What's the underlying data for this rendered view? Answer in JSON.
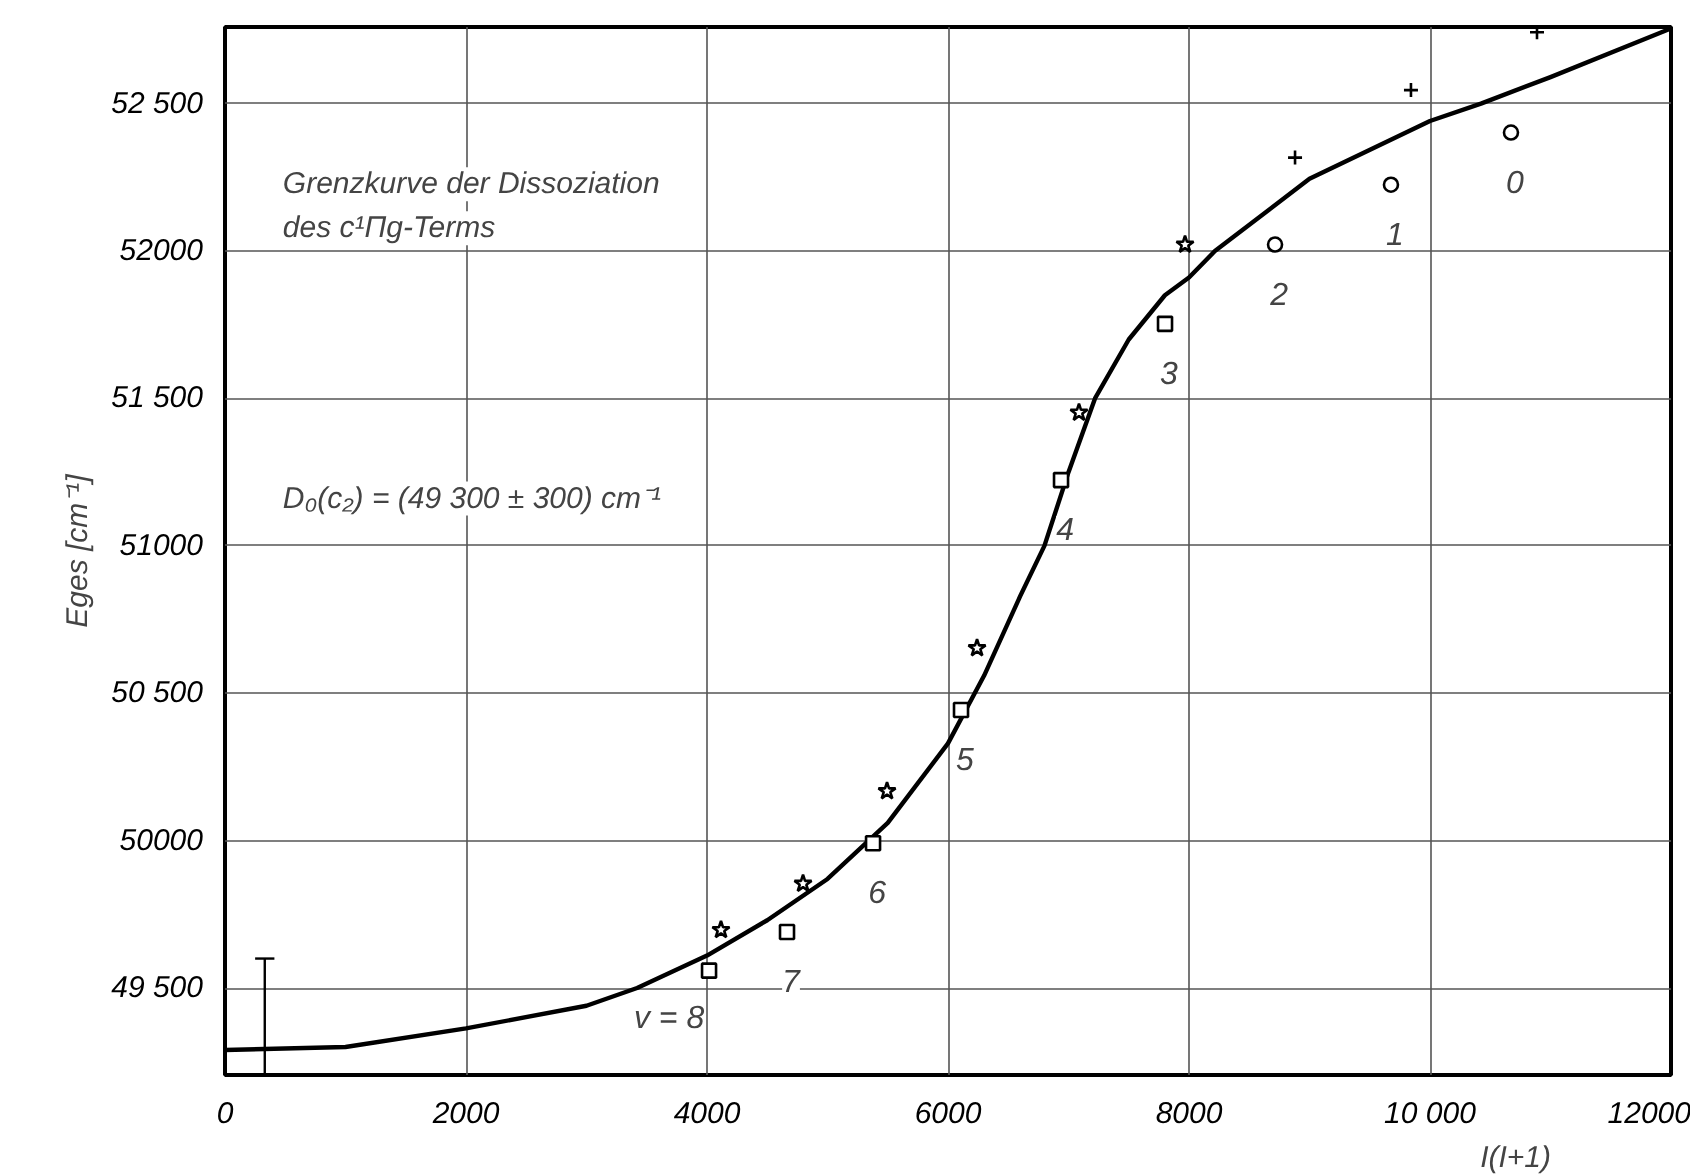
{
  "chart_data": {
    "type": "scatter",
    "xlabel": "I(I+1)",
    "ylabel": "Eges [cm⁻¹]",
    "xlim": [
      0,
      12000
    ],
    "ylim": [
      49205,
      52760
    ],
    "xticks": [
      0,
      2000,
      4000,
      6000,
      8000,
      {
        "value": 10000,
        "label": "10 000"
      },
      12000
    ],
    "yticks": [
      {
        "value": 49500,
        "label": "49 500"
      },
      50000,
      {
        "value": 50500,
        "label": "50 500"
      },
      51000,
      {
        "value": 51500,
        "label": "51 500"
      },
      52000,
      {
        "value": 52500,
        "label": "52 500"
      }
    ],
    "grid": true,
    "series": [
      {
        "type": "line",
        "color": "#000000",
        "x": [
          0,
          1000,
          2000,
          3000,
          3420,
          4000,
          4500,
          5000,
          5500,
          6000,
          6300,
          6600,
          6800,
          7000,
          7220,
          7500,
          7800,
          8000,
          8215,
          9000,
          10000,
          10423,
          11000,
          12000
        ],
        "values": [
          49290,
          49300,
          49363,
          49440,
          49500,
          49610,
          49730,
          49870,
          50060,
          50330,
          50560,
          50830,
          51000,
          51250,
          51500,
          51700,
          51850,
          51910,
          52000,
          52245,
          52441,
          52500,
          52590,
          52755
        ]
      },
      {
        "color": "#000000",
        "marker": "square",
        "x": [
          4017,
          4664,
          5378,
          6108,
          6938,
          7801
        ],
        "values": [
          49559,
          49690,
          49991,
          50443,
          51223,
          51753
        ]
      },
      {
        "color": "#000000",
        "marker": "star",
        "x": [
          4116,
          4797,
          5494,
          6241,
          7087,
          7967
        ],
        "values": [
          49697,
          49854,
          50168,
          50653,
          51452,
          52022
        ]
      },
      {
        "color": "#000000",
        "marker": "circle",
        "x": [
          8714,
          9676,
          10672
        ],
        "values": [
          52022,
          52225,
          52402
        ]
      },
      {
        "color": "#000000",
        "marker": "cross",
        "x": [
          8880,
          9842,
          10888
        ],
        "values": [
          52317,
          52546,
          52742
        ]
      },
      {
        "type": "line",
        "color": "#000000",
        "x": [
          330,
          330
        ],
        "values": [
          49205,
          49600
        ]
      },
      {
        "type": "line",
        "color": "#000000",
        "x": [
          250,
          410
        ],
        "values": [
          49600,
          49600
        ]
      }
    ],
    "annotations": [
      "Grenzkurve der Dissoziation\ndes c¹Πg-Terms",
      "D₀(c₂) = (49 300 ± 300) cm⁻¹",
      "v = 8",
      "7",
      "6",
      "5",
      "4",
      "3",
      "2",
      "1",
      "0"
    ]
  }
}
